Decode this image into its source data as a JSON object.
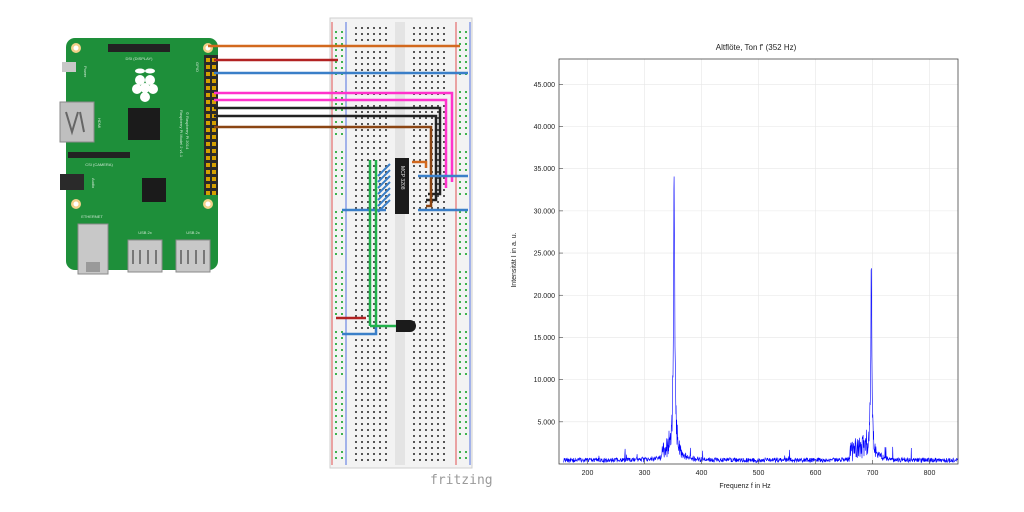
{
  "figure": {
    "left_panel": "fritzing wiring diagram",
    "right_panel": "frequency spectrum"
  },
  "wiring": {
    "watermark": "fritzing",
    "pi": {
      "board_text_1": "Raspberry Pi Model 2 v1.1",
      "board_text_2": "© Raspberry Pi 2014",
      "display_label": "DSI (DISPLAY)",
      "camera_label": "CSI (CAMERA)",
      "power_label": "Power",
      "hdmi_label": "HDMI",
      "audio_label": "Audio",
      "ethernet_label": "ETHERNET",
      "usb_label_1": "USB 2x",
      "usb_label_2": "USB 2x",
      "gpio_label": "GPIO"
    },
    "ic_label": "MCP 3208",
    "colors": {
      "board_green": "#1e8f3a",
      "wire_orange": "#d2691e",
      "wire_red": "#b22222",
      "wire_blue": "#3a7fc8",
      "wire_magenta": "#ff33cc",
      "wire_black": "#222222",
      "wire_brown": "#8b4513",
      "wire_green": "#22b14c"
    }
  },
  "chart_data": {
    "type": "line",
    "title": "Altflöte, Ton f' (352 Hz)",
    "xlabel": "Frequenz f in Hz",
    "ylabel": "Intensität I in a. u.",
    "xlim": [
      150,
      850
    ],
    "ylim": [
      0,
      48000
    ],
    "xticks": [
      200,
      300,
      400,
      500,
      600,
      700,
      800
    ],
    "yticks": [
      5000,
      10000,
      15000,
      20000,
      25000,
      30000,
      35000,
      40000,
      45000
    ],
    "ytick_labels": [
      "5.000",
      "10.000",
      "15.000",
      "20.000",
      "25.000",
      "30.000",
      "35.000",
      "40.000",
      "45.000"
    ],
    "grid": true,
    "series": [
      {
        "color": "#0000ff",
        "peaks": [
          {
            "x": 352,
            "y": 32000
          },
          {
            "x": 698,
            "y": 21000
          }
        ],
        "noise_level": 600
      }
    ]
  }
}
